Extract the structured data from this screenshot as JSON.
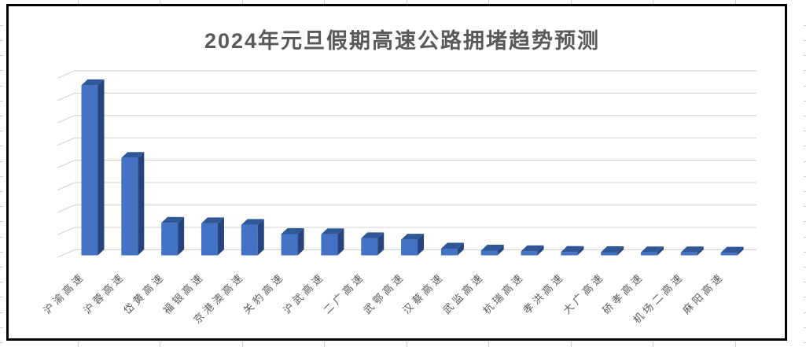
{
  "chart_data": {
    "type": "bar",
    "style": "3d-column",
    "title": "2024年元旦假期高速公路拥堵趋势预测",
    "categories": [
      "沪渝高速",
      "沪蓉高速",
      "岱黄高速",
      "福银高速",
      "京港澳高速",
      "关豹高速",
      "沪武高速",
      "二广高速",
      "武鄂高速",
      "汉蔡高速",
      "武监高速",
      "杭瑞高速",
      "孝洪高速",
      "大广高速",
      "硚孝高速",
      "机场二高速",
      "麻阳高速"
    ],
    "values": [
      7.6,
      4.35,
      1.45,
      1.43,
      1.36,
      0.95,
      0.94,
      0.76,
      0.7,
      0.3,
      0.21,
      0.18,
      0.15,
      0.14,
      0.13,
      0.13,
      0.12
    ],
    "xlabel": "",
    "ylabel": "",
    "ylim": [
      0,
      8
    ],
    "gridline_interval": 1,
    "grid": true,
    "legend": false,
    "y_tick_labels": [],
    "colors": {
      "bar_front": "#4472C4",
      "bar_top": "#305899",
      "bar_side": "#27447E",
      "gridline": "#D6D6D6",
      "title_text": "#595959",
      "axis_label_text": "#595959",
      "chart_border": "#000000"
    }
  }
}
